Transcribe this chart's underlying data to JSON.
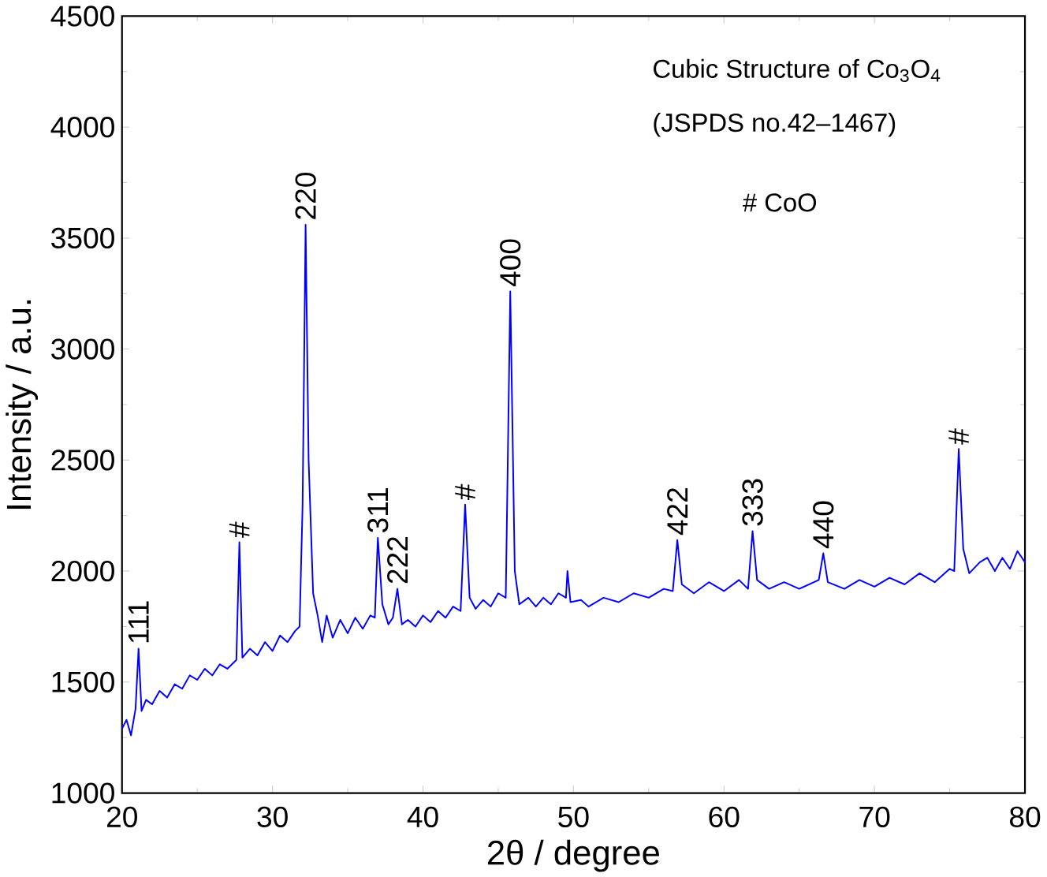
{
  "chart_data": {
    "type": "line",
    "xlabel": "2θ / degree",
    "ylabel": "Intensity / a.u.",
    "xlim": [
      20,
      80
    ],
    "ylim": [
      1000,
      4500
    ],
    "xticks": [
      20,
      30,
      40,
      50,
      60,
      70,
      80
    ],
    "yticks": [
      1000,
      1500,
      2000,
      2500,
      3000,
      3500,
      4000,
      4500
    ],
    "series": [
      {
        "color": "#0000ff",
        "x": [
          20.0,
          20.3,
          20.6,
          20.9,
          21.1,
          21.3,
          21.6,
          22.0,
          22.5,
          23.0,
          23.5,
          24.0,
          24.5,
          25.0,
          25.5,
          26.0,
          26.5,
          27.0,
          27.6,
          27.8,
          28.0,
          28.5,
          29.0,
          29.5,
          30.0,
          30.5,
          31.0,
          31.5,
          31.8,
          32.0,
          32.2,
          32.4,
          32.7,
          33.0,
          33.3,
          33.6,
          34.0,
          34.5,
          35.0,
          35.5,
          36.0,
          36.5,
          36.8,
          37.0,
          37.3,
          37.7,
          38.0,
          38.3,
          38.6,
          39.0,
          39.5,
          40.0,
          40.5,
          41.0,
          41.5,
          42.0,
          42.5,
          42.8,
          43.1,
          43.5,
          44.0,
          44.5,
          45.0,
          45.5,
          45.8,
          46.1,
          46.4,
          47.0,
          47.5,
          48.0,
          48.5,
          49.0,
          49.5,
          49.6,
          49.8,
          50.5,
          51.0,
          52.0,
          53.0,
          54.0,
          55.0,
          56.0,
          56.6,
          56.9,
          57.2,
          58.0,
          59.0,
          60.0,
          61.0,
          61.6,
          61.9,
          62.2,
          63.0,
          64.0,
          65.0,
          66.3,
          66.6,
          66.9,
          68.0,
          69.0,
          70.0,
          71.0,
          72.0,
          73.0,
          74.0,
          75.0,
          75.3,
          75.6,
          75.9,
          76.3,
          77.0,
          77.5,
          78.0,
          78.5,
          79.0,
          79.5,
          80.0
        ],
        "values": [
          1290,
          1330,
          1260,
          1380,
          1650,
          1370,
          1420,
          1400,
          1460,
          1430,
          1490,
          1470,
          1530,
          1510,
          1560,
          1530,
          1580,
          1560,
          1600,
          2130,
          1610,
          1650,
          1620,
          1680,
          1640,
          1710,
          1680,
          1730,
          1750,
          2300,
          3560,
          2500,
          1900,
          1800,
          1680,
          1800,
          1700,
          1780,
          1720,
          1790,
          1740,
          1800,
          1790,
          2150,
          1850,
          1760,
          1790,
          1920,
          1760,
          1780,
          1750,
          1800,
          1770,
          1820,
          1790,
          1840,
          1820,
          2300,
          1880,
          1830,
          1870,
          1840,
          1900,
          1880,
          3260,
          2000,
          1850,
          1880,
          1840,
          1880,
          1850,
          1900,
          1880,
          2000,
          1860,
          1870,
          1840,
          1880,
          1860,
          1900,
          1880,
          1920,
          1910,
          2140,
          1940,
          1900,
          1950,
          1910,
          1960,
          1920,
          2180,
          1960,
          1920,
          1950,
          1920,
          1960,
          2080,
          1950,
          1920,
          1960,
          1930,
          1970,
          1940,
          1990,
          1950,
          2010,
          2000,
          2550,
          2100,
          1990,
          2040,
          2060,
          2000,
          2060,
          2010,
          2090,
          2040
        ]
      }
    ],
    "marker": "none",
    "line_style": "solid",
    "grid": false,
    "annotations": [
      "Cubic Structure of Co$_{3}$O$_{4}$",
      "(JSPDS no.42–1467)",
      "# CoO",
      {
        "text": "111",
        "x": 21.1,
        "y": 1650
      },
      {
        "text": "#",
        "x": 27.8,
        "y": 2130
      },
      {
        "text": "220",
        "x": 32.2,
        "y": 3560
      },
      {
        "text": "311",
        "x": 37.0,
        "y": 2150
      },
      {
        "text": "222",
        "x": 38.3,
        "y": 1920
      },
      {
        "text": "#",
        "x": 42.8,
        "y": 2300
      },
      {
        "text": "400",
        "x": 45.8,
        "y": 3260
      },
      {
        "text": "422",
        "x": 56.9,
        "y": 2140
      },
      {
        "text": "333",
        "x": 61.9,
        "y": 2180
      },
      {
        "text": "440",
        "x": 66.6,
        "y": 2080
      },
      {
        "text": "#",
        "x": 75.6,
        "y": 2550
      }
    ]
  }
}
